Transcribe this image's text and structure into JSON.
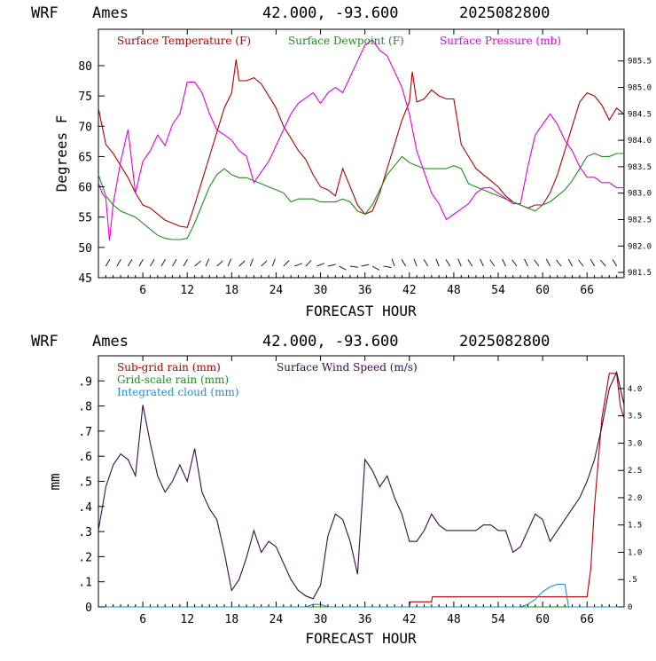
{
  "header": {
    "model": "WRF",
    "site": "Ames",
    "coords": "42.000, -93.600",
    "init": "2025082800"
  },
  "colors": {
    "temperature": "#b00000",
    "dewpoint": "#1e8c1e",
    "pressure": "#e000e0",
    "subgrid_rain": "#b00000",
    "grid_rain": "#1e8c1e",
    "cloud": "#1e90d0",
    "wind": "#3a0a4a",
    "axis": "#000000"
  },
  "chart_data": [
    {
      "type": "line",
      "xlabel": "FORECAST HOUR",
      "ylabel": "Degrees F",
      "xlim": [
        0,
        71
      ],
      "ylim": [
        45,
        86
      ],
      "y2lim": [
        981.4,
        986.1
      ],
      "xticks": [
        "6",
        "12",
        "18",
        "24",
        "30",
        "36",
        "42",
        "48",
        "54",
        "60",
        "66"
      ],
      "yticks": [
        "45",
        "50",
        "55",
        "60",
        "65",
        "70",
        "75",
        "80"
      ],
      "y2ticks": [
        "981.5",
        "982.0",
        "982.5",
        "983.0",
        "983.5",
        "984.0",
        "984.5",
        "985.0",
        "985.5"
      ],
      "legend": "top",
      "series": [
        {
          "name": "Surface Temperature (F)",
          "axis": "left",
          "x": [
            0,
            1,
            2,
            3,
            4,
            5,
            6,
            7,
            8,
            9,
            10,
            11,
            12,
            13,
            14,
            15,
            16,
            17,
            18,
            18.6,
            19,
            20,
            21,
            22,
            23,
            24,
            25,
            26,
            27,
            28,
            29,
            30,
            31,
            32,
            33,
            34,
            35,
            36,
            37,
            38,
            39,
            40,
            41,
            42,
            42.4,
            43,
            44,
            45,
            46,
            47,
            48,
            49,
            50,
            51,
            52,
            53,
            54,
            55,
            56,
            57,
            58,
            59,
            60,
            61,
            62,
            63,
            64,
            65,
            66,
            67,
            68,
            69,
            70,
            71
          ],
          "values": [
            73,
            67,
            65.5,
            63.5,
            61.5,
            59,
            57,
            56.5,
            55.5,
            54.5,
            54,
            53.5,
            53.3,
            57,
            61,
            65,
            69,
            73,
            75.5,
            81,
            77.5,
            77.5,
            78,
            77,
            75,
            73,
            70,
            68,
            66,
            64.5,
            62,
            60,
            59.5,
            58.5,
            63,
            60,
            57,
            55.5,
            56,
            59,
            63,
            67,
            71,
            74,
            79,
            74,
            74.5,
            76,
            75,
            74.5,
            74.5,
            67,
            65,
            63,
            62,
            61,
            60,
            58.5,
            57.5,
            57,
            56.5,
            57,
            57,
            59,
            62,
            66,
            70,
            74,
            75.5,
            75,
            73.5,
            71,
            73,
            72
          ]
        },
        {
          "name": "Surface Dewpoint (F)",
          "axis": "left",
          "x": [
            0,
            1,
            2,
            3,
            4,
            5,
            6,
            7,
            8,
            9,
            10,
            11,
            12,
            13,
            14,
            15,
            16,
            17,
            18,
            19,
            20,
            21,
            22,
            23,
            24,
            25,
            26,
            27,
            28,
            29,
            30,
            31,
            32,
            33,
            34,
            35,
            36,
            37,
            38,
            39,
            40,
            41,
            42,
            43,
            44,
            45,
            46,
            47,
            48,
            49,
            50,
            51,
            52,
            53,
            54,
            55,
            56,
            57,
            58,
            59,
            60,
            61,
            62,
            63,
            64,
            65,
            66,
            67,
            68,
            69,
            70,
            71
          ],
          "values": [
            62,
            58.5,
            57,
            56,
            55.5,
            55,
            54,
            53,
            52,
            51.5,
            51.3,
            51.3,
            51.5,
            54,
            57,
            60,
            62,
            63,
            62,
            61.5,
            61.5,
            61,
            60.5,
            60,
            59.5,
            59,
            57.5,
            58,
            58,
            58,
            57.5,
            57.5,
            57.5,
            58,
            57.5,
            56,
            55.5,
            57,
            59.5,
            62,
            63.5,
            65,
            64,
            63.5,
            63,
            63,
            63,
            63,
            63.5,
            63,
            60.5,
            60,
            59.5,
            59,
            58.5,
            58,
            57.5,
            57,
            56.5,
            56,
            57,
            57.5,
            58.5,
            59.5,
            61,
            63,
            65,
            65.5,
            65,
            65,
            65.5,
            65.5
          ]
        },
        {
          "name": "Surface Pressure (mb)",
          "axis": "right",
          "x": [
            0,
            0.5,
            1,
            1.5,
            2,
            3,
            4,
            5,
            6,
            7,
            8,
            9,
            10,
            11,
            12,
            13,
            14,
            15,
            16,
            17,
            18,
            19,
            20,
            21,
            22,
            23,
            24,
            25,
            26,
            27,
            28,
            29,
            30,
            31,
            32,
            33,
            34,
            35,
            36,
            37,
            38,
            39,
            40,
            41,
            42,
            43,
            44,
            45,
            46,
            47,
            48,
            49,
            50,
            51,
            52,
            53,
            54,
            55,
            56,
            57,
            58,
            59,
            60,
            61,
            62,
            63,
            64,
            65,
            66,
            67,
            68,
            69,
            70,
            71
          ],
          "values": [
            983.2,
            983.0,
            982.9,
            982.1,
            982.8,
            983.6,
            984.2,
            983.0,
            983.6,
            983.8,
            984.1,
            983.9,
            984.3,
            984.5,
            985.1,
            985.1,
            984.9,
            984.5,
            984.2,
            984.1,
            984.0,
            983.8,
            983.7,
            983.2,
            983.4,
            983.6,
            983.9,
            984.2,
            984.5,
            984.7,
            984.8,
            984.9,
            984.7,
            984.9,
            985.0,
            984.9,
            985.2,
            985.5,
            985.8,
            985.9,
            985.7,
            985.6,
            985.3,
            985.0,
            984.5,
            983.8,
            983.4,
            983.0,
            982.8,
            982.5,
            982.6,
            982.7,
            982.8,
            983.0,
            983.1,
            983.1,
            983.0,
            982.9,
            982.8,
            982.8,
            983.5,
            984.1,
            984.3,
            984.5,
            984.3,
            984.0,
            983.8,
            983.5,
            983.3,
            983.3,
            983.2,
            983.2,
            983.1,
            983.1
          ]
        }
      ]
    },
    {
      "type": "line",
      "xlabel": "FORECAST HOUR",
      "ylabel": "mm",
      "xlim": [
        0,
        71
      ],
      "ylim": [
        0,
        1.0
      ],
      "y2lim": [
        0,
        4.6
      ],
      "xticks": [
        "6",
        "12",
        "18",
        "24",
        "30",
        "36",
        "42",
        "48",
        "54",
        "60",
        "66"
      ],
      "yticks": [
        "0",
        ".1",
        ".2",
        ".3",
        ".4",
        ".5",
        ".6",
        ".7",
        ".8",
        ".9"
      ],
      "y2ticks": [
        "0",
        ".5",
        "1.0",
        "1.5",
        "2.0",
        "2.5",
        "3.0",
        "3.5",
        "4.0"
      ],
      "legend": "top-left",
      "series": [
        {
          "name": "Sub-grid rain (mm)",
          "axis": "left",
          "x": [
            0,
            42,
            42.1,
            45,
            45.1,
            66,
            66.5,
            67,
            68,
            69,
            70,
            70.5,
            71
          ],
          "values": [
            0,
            0,
            0.02,
            0.02,
            0.04,
            0.04,
            0.15,
            0.4,
            0.75,
            0.93,
            0.93,
            0.8,
            0.75
          ]
        },
        {
          "name": "Grid-scale rain (mm)",
          "axis": "left",
          "x": [
            0,
            71
          ],
          "values": [
            0,
            0
          ]
        },
        {
          "name": "Integrated cloud (mm)",
          "axis": "left",
          "x": [
            0,
            28,
            29,
            30,
            31,
            57,
            58,
            59,
            60,
            61,
            62,
            63,
            63.5,
            71
          ],
          "values": [
            0,
            0,
            0.01,
            0.01,
            0,
            0,
            0.01,
            0.03,
            0.06,
            0.08,
            0.09,
            0.09,
            0,
            0
          ]
        },
        {
          "name": "Surface Wind Speed (m/s)",
          "axis": "right",
          "x": [
            0,
            1,
            2,
            3,
            4,
            5,
            6,
            7,
            8,
            9,
            10,
            11,
            12,
            13,
            14,
            15,
            16,
            17,
            18,
            19,
            20,
            21,
            22,
            23,
            24,
            25,
            26,
            27,
            28,
            29,
            30,
            31,
            32,
            33,
            34,
            35,
            36,
            37,
            38,
            39,
            40,
            41,
            42,
            43,
            44,
            45,
            46,
            47,
            48,
            49,
            50,
            51,
            52,
            53,
            54,
            55,
            56,
            57,
            58,
            59,
            60,
            61,
            62,
            63,
            64,
            65,
            66,
            67,
            68,
            69,
            70,
            71
          ],
          "values": [
            1.4,
            2.2,
            2.6,
            2.8,
            2.7,
            2.4,
            3.7,
            3.0,
            2.4,
            2.1,
            2.3,
            2.6,
            2.3,
            2.9,
            2.1,
            1.8,
            1.6,
            1.0,
            0.3,
            0.5,
            0.9,
            1.4,
            1.0,
            1.2,
            1.1,
            0.8,
            0.5,
            0.3,
            0.2,
            0.15,
            0.4,
            1.3,
            1.7,
            1.6,
            1.2,
            0.6,
            2.7,
            2.5,
            2.2,
            2.4,
            2.0,
            1.7,
            1.2,
            1.2,
            1.4,
            1.7,
            1.5,
            1.4,
            1.4,
            1.4,
            1.4,
            1.4,
            1.5,
            1.5,
            1.4,
            1.4,
            1.0,
            1.1,
            1.4,
            1.7,
            1.6,
            1.2,
            1.4,
            1.6,
            1.8,
            2.0,
            2.3,
            2.7,
            3.3,
            4.0,
            4.3,
            3.7
          ]
        }
      ]
    }
  ]
}
